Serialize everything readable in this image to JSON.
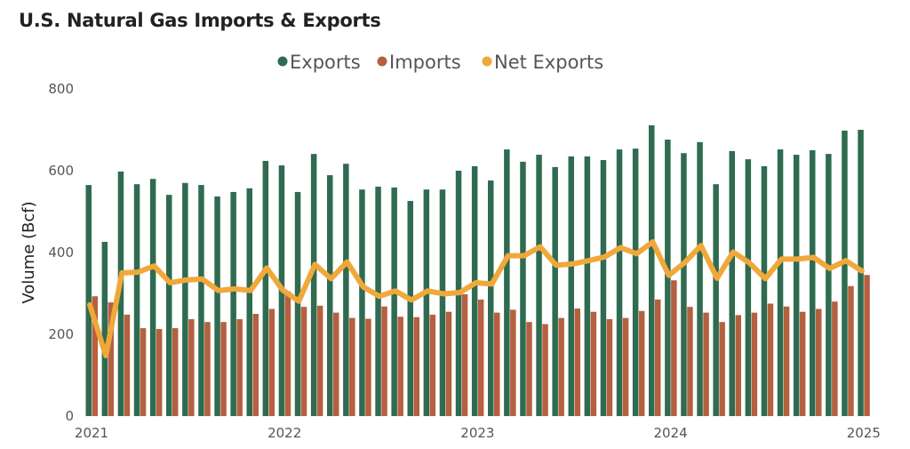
{
  "chart_data": {
    "type": "bar",
    "title": "U.S. Natural Gas Imports & Exports",
    "xlabel": "",
    "ylabel": "Volume (Bcf)",
    "ylim": [
      0,
      800
    ],
    "yticks": [
      "0",
      "200",
      "400",
      "600",
      "800"
    ],
    "xticks": [
      "2021",
      "2022",
      "2023",
      "2024",
      "2025"
    ],
    "x_start": "2021-01",
    "x_end": "2025-01",
    "frequency": "monthly",
    "grid": false,
    "legend_placement": "top-center",
    "colors": {
      "Exports": "#2f6b50",
      "Imports": "#b5603f",
      "Net Exports": "#f0a83a"
    },
    "series": [
      {
        "name": "Exports",
        "type": "bar",
        "values": [
          565,
          426,
          598,
          567,
          580,
          541,
          570,
          565,
          537,
          548,
          557,
          624,
          613,
          548,
          641,
          589,
          617,
          554,
          561,
          559,
          526,
          554,
          554,
          600,
          611,
          576,
          652,
          622,
          639,
          609,
          635,
          635,
          626,
          652,
          654,
          711,
          676,
          643,
          670,
          567,
          648,
          628,
          611,
          652,
          639,
          650,
          641,
          698,
          700
        ]
      },
      {
        "name": "Imports",
        "type": "bar",
        "values": [
          293,
          278,
          248,
          215,
          213,
          215,
          237,
          230,
          230,
          237,
          250,
          262,
          305,
          267,
          270,
          253,
          240,
          238,
          268,
          243,
          242,
          248,
          255,
          298,
          285,
          253,
          260,
          230,
          225,
          240,
          263,
          255,
          237,
          240,
          257,
          285,
          332,
          267,
          253,
          230,
          247,
          253,
          275,
          268,
          255,
          262,
          280,
          318,
          345
        ]
      },
      {
        "name": "Net Exports",
        "type": "line",
        "values": [
          272,
          148,
          350,
          352,
          367,
          326,
          333,
          335,
          307,
          311,
          307,
          362,
          308,
          281,
          371,
          336,
          377,
          316,
          293,
          306,
          284,
          306,
          299,
          302,
          326,
          323,
          392,
          392,
          414,
          369,
          372,
          380,
          389,
          412,
          397,
          426,
          344,
          376,
          417,
          337,
          401,
          375,
          336,
          384,
          384,
          388,
          361,
          380,
          355
        ]
      }
    ]
  }
}
